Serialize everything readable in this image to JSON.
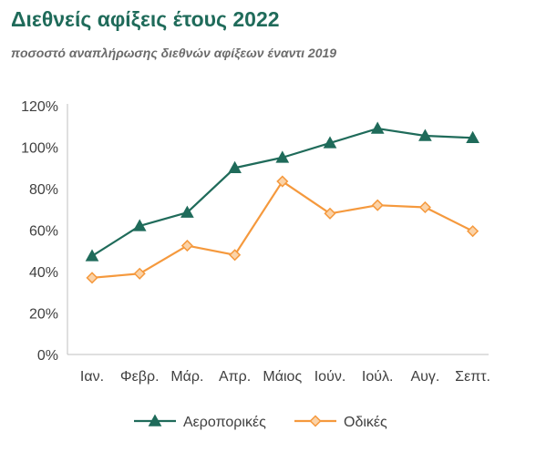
{
  "chart_data": {
    "type": "line",
    "title": "Διεθνείς αφίξεις έτους 2022",
    "subtitle": "ποσοστό αναπλήρωσης διεθνών αφίξεων έναντι 2019",
    "xlabel": "",
    "ylabel": "",
    "categories": [
      "Ιαν.",
      "Φεβρ.",
      "Μάρ.",
      "Απρ.",
      "Μάιος",
      "Ιούν.",
      "Ιούλ.",
      "Αυγ.",
      "Σεπτ."
    ],
    "ylim": [
      0,
      120
    ],
    "yticks": [
      "0%",
      "20%",
      "40%",
      "60%",
      "80%",
      "100%",
      "120%"
    ],
    "grid": false,
    "legend": "bottom",
    "series": [
      {
        "name": "Αεροπορικές",
        "values": [
          47.5,
          62,
          68.5,
          90,
          95,
          102,
          109,
          105.5,
          104.5
        ],
        "color": "#1f6b5a",
        "marker": "triangle"
      },
      {
        "name": "Οδικές",
        "values": [
          37,
          39,
          52.5,
          48,
          83.5,
          68,
          72,
          71,
          59.5
        ],
        "color": "#f5993d",
        "marker": "diamond"
      }
    ]
  }
}
